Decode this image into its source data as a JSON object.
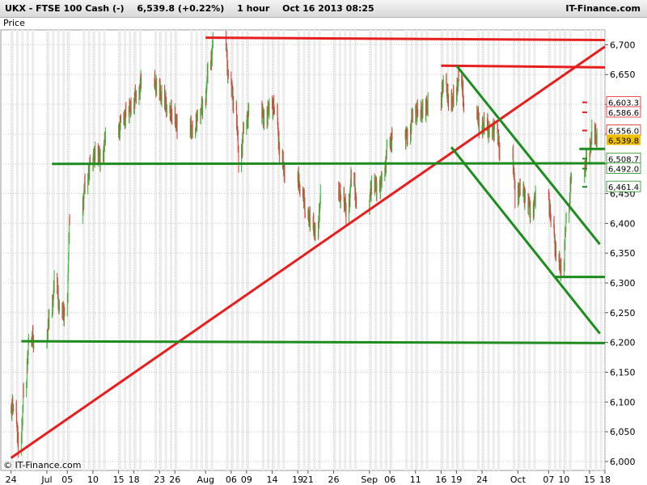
{
  "header": {
    "symbol": "UKX - FTSE 100 Cash (-)",
    "quote": "6,539.8 (+0.22%)",
    "interval": "1 hour",
    "datetime": "Oct 16 2013 08:25",
    "brand": "IT-Finance.com"
  },
  "footer": {
    "copyright": "© IT-Finance.com"
  },
  "colors": {
    "up": "#3cb43c",
    "down": "#dc3c3c",
    "support": "#1e8c1e",
    "resistance": "#e61e1e",
    "current": "#f0c000"
  },
  "chart_data": {
    "type": "candlestick",
    "title": "",
    "ylabel": "Price",
    "xlabel": "",
    "ylim": [
      5985,
      6725
    ],
    "yticks": [
      6000,
      6050,
      6100,
      6150,
      6200,
      6250,
      6300,
      6350,
      6400,
      6450,
      6500,
      6550,
      6600,
      6650,
      6700
    ],
    "ytick_labels": [
      "6,000",
      "6,050",
      "6,100",
      "6,150",
      "6,200",
      "6,250",
      "6,300",
      "6,350",
      "6,400",
      "6,450",
      "6,500",
      "6,550",
      "6,600",
      "6,650",
      "6,700"
    ],
    "xlim": [
      "2013-06-22",
      "2013-10-18"
    ],
    "xticks": [
      {
        "label": "24",
        "date": "2013-06-24"
      },
      {
        "label": "Jul",
        "date": "2013-07-01"
      },
      {
        "label": "05",
        "date": "2013-07-05"
      },
      {
        "label": "10",
        "date": "2013-07-10"
      },
      {
        "label": "15",
        "date": "2013-07-15"
      },
      {
        "label": "18",
        "date": "2013-07-18"
      },
      {
        "label": "23",
        "date": "2013-07-23"
      },
      {
        "label": "26",
        "date": "2013-07-26"
      },
      {
        "label": "Aug",
        "date": "2013-08-01"
      },
      {
        "label": "06",
        "date": "2013-08-06"
      },
      {
        "label": "09",
        "date": "2013-08-09"
      },
      {
        "label": "14",
        "date": "2013-08-14"
      },
      {
        "label": "19",
        "date": "2013-08-19"
      },
      {
        "label": "21",
        "date": "2013-08-21"
      },
      {
        "label": "26",
        "date": "2013-08-26"
      },
      {
        "label": "Sep",
        "date": "2013-09-02"
      },
      {
        "label": "06",
        "date": "2013-09-06"
      },
      {
        "label": "11",
        "date": "2013-09-11"
      },
      {
        "label": "16",
        "date": "2013-09-16"
      },
      {
        "label": "19",
        "date": "2013-09-19"
      },
      {
        "label": "24",
        "date": "2013-09-24"
      },
      {
        "label": "Oct",
        "date": "2013-10-01"
      },
      {
        "label": "07",
        "date": "2013-10-07"
      },
      {
        "label": "10",
        "date": "2013-10-10"
      },
      {
        "label": "15",
        "date": "2013-10-15"
      },
      {
        "label": "18",
        "date": "2013-10-18"
      }
    ],
    "grid": true,
    "price_series": [
      {
        "date": "2013-06-24",
        "close": 6090
      },
      {
        "date": "2013-06-25",
        "close": 6020
      },
      {
        "date": "2013-06-26",
        "close": 6120
      },
      {
        "date": "2013-06-27",
        "close": 6210
      },
      {
        "date": "2013-06-28",
        "close": 6200
      },
      {
        "date": "2013-07-01",
        "close": 6245
      },
      {
        "date": "2013-07-02",
        "close": 6300
      },
      {
        "date": "2013-07-03",
        "close": 6250
      },
      {
        "date": "2013-07-04",
        "close": 6250
      },
      {
        "date": "2013-07-05",
        "close": 6420
      },
      {
        "date": "2013-07-08",
        "close": 6470
      },
      {
        "date": "2013-07-09",
        "close": 6505
      },
      {
        "date": "2013-07-10",
        "close": 6520
      },
      {
        "date": "2013-07-11",
        "close": 6510
      },
      {
        "date": "2013-07-12",
        "close": 6550
      },
      {
        "date": "2013-07-15",
        "close": 6570
      },
      {
        "date": "2013-07-16",
        "close": 6585
      },
      {
        "date": "2013-07-17",
        "close": 6600
      },
      {
        "date": "2013-07-18",
        "close": 6620
      },
      {
        "date": "2013-07-19",
        "close": 6640
      },
      {
        "date": "2013-07-22",
        "close": 6625
      },
      {
        "date": "2013-07-23",
        "close": 6610
      },
      {
        "date": "2013-07-24",
        "close": 6590
      },
      {
        "date": "2013-07-25",
        "close": 6580
      },
      {
        "date": "2013-07-26",
        "close": 6560
      },
      {
        "date": "2013-07-29",
        "close": 6555
      },
      {
        "date": "2013-07-30",
        "close": 6585
      },
      {
        "date": "2013-07-31",
        "close": 6600
      },
      {
        "date": "2013-08-01",
        "close": 6660
      },
      {
        "date": "2013-08-02",
        "close": 6705
      },
      {
        "date": "2013-08-05",
        "close": 6640
      },
      {
        "date": "2013-08-06",
        "close": 6600
      },
      {
        "date": "2013-08-07",
        "close": 6510
      },
      {
        "date": "2013-08-08",
        "close": 6565
      },
      {
        "date": "2013-08-09",
        "close": 6590
      },
      {
        "date": "2013-08-12",
        "close": 6575
      },
      {
        "date": "2013-08-13",
        "close": 6600
      },
      {
        "date": "2013-08-14",
        "close": 6590
      },
      {
        "date": "2013-08-15",
        "close": 6510
      },
      {
        "date": "2013-08-16",
        "close": 6480
      },
      {
        "date": "2013-08-19",
        "close": 6460
      },
      {
        "date": "2013-08-20",
        "close": 6420
      },
      {
        "date": "2013-08-21",
        "close": 6400
      },
      {
        "date": "2013-08-22",
        "close": 6380
      },
      {
        "date": "2013-08-23",
        "close": 6450
      },
      {
        "date": "2013-08-27",
        "close": 6445
      },
      {
        "date": "2013-08-28",
        "close": 6420
      },
      {
        "date": "2013-08-29",
        "close": 6480
      },
      {
        "date": "2013-08-30",
        "close": 6430
      },
      {
        "date": "2013-09-02",
        "close": 6470
      },
      {
        "date": "2013-09-03",
        "close": 6460
      },
      {
        "date": "2013-09-04",
        "close": 6475
      },
      {
        "date": "2013-09-05",
        "close": 6530
      },
      {
        "date": "2013-09-06",
        "close": 6545
      },
      {
        "date": "2013-09-09",
        "close": 6550
      },
      {
        "date": "2013-09-10",
        "close": 6590
      },
      {
        "date": "2013-09-11",
        "close": 6585
      },
      {
        "date": "2013-09-12",
        "close": 6590
      },
      {
        "date": "2013-09-13",
        "close": 6600
      },
      {
        "date": "2013-09-16",
        "close": 6640
      },
      {
        "date": "2013-09-17",
        "close": 6600
      },
      {
        "date": "2013-09-18",
        "close": 6610
      },
      {
        "date": "2013-09-19",
        "close": 6650
      },
      {
        "date": "2013-09-20",
        "close": 6595
      },
      {
        "date": "2013-09-23",
        "close": 6560
      },
      {
        "date": "2013-09-24",
        "close": 6565
      },
      {
        "date": "2013-09-25",
        "close": 6550
      },
      {
        "date": "2013-09-26",
        "close": 6560
      },
      {
        "date": "2013-09-27",
        "close": 6520
      },
      {
        "date": "2013-09-30",
        "close": 6450
      },
      {
        "date": "2013-10-01",
        "close": 6460
      },
      {
        "date": "2013-10-02",
        "close": 6440
      },
      {
        "date": "2013-10-03",
        "close": 6420
      },
      {
        "date": "2013-10-04",
        "close": 6450
      },
      {
        "date": "2013-10-07",
        "close": 6400
      },
      {
        "date": "2013-10-08",
        "close": 6340
      },
      {
        "date": "2013-10-09",
        "close": 6320
      },
      {
        "date": "2013-10-10",
        "close": 6420
      },
      {
        "date": "2013-10-11",
        "close": 6485
      },
      {
        "date": "2013-10-14",
        "close": 6510
      },
      {
        "date": "2013-10-15",
        "close": 6550
      },
      {
        "date": "2013-10-16",
        "close": 6540
      }
    ],
    "trendlines": [
      {
        "kind": "resistance",
        "start": {
          "date": "2013-08-01",
          "value": 6712
        },
        "end": {
          "date": "2013-10-18",
          "value": 6708
        }
      },
      {
        "kind": "resistance",
        "start": {
          "date": "2013-09-16",
          "value": 6665
        },
        "end": {
          "date": "2013-10-18",
          "value": 6662
        }
      },
      {
        "kind": "resistance",
        "start": {
          "date": "2013-06-24",
          "value": 6006
        },
        "end": {
          "date": "2013-10-18",
          "value": 6697
        }
      },
      {
        "kind": "support",
        "start": {
          "date": "2013-07-02",
          "value": 6500
        },
        "end": {
          "date": "2013-10-18",
          "value": 6501
        }
      },
      {
        "kind": "support",
        "start": {
          "date": "2013-06-26",
          "value": 6202
        },
        "end": {
          "date": "2013-10-18",
          "value": 6199
        }
      },
      {
        "kind": "support",
        "start": {
          "date": "2013-10-08",
          "value": 6310
        },
        "end": {
          "date": "2013-10-18",
          "value": 6310
        }
      },
      {
        "kind": "support",
        "start": {
          "date": "2013-10-13",
          "value": 6525
        },
        "end": {
          "date": "2013-10-18",
          "value": 6525
        }
      },
      {
        "kind": "support",
        "start": {
          "date": "2013-09-19",
          "value": 6665
        },
        "end": {
          "date": "2013-10-17",
          "value": 6365
        }
      },
      {
        "kind": "support",
        "start": {
          "date": "2013-09-18",
          "value": 6528
        },
        "end": {
          "date": "2013-10-17",
          "value": 6215
        }
      }
    ],
    "price_labels": [
      {
        "text": "6,603.3",
        "value": 6603.3,
        "kind": "resistance"
      },
      {
        "text": "6,586.6",
        "value": 6586.6,
        "kind": "resistance"
      },
      {
        "text": "6,556.0",
        "value": 6556.0,
        "kind": "resistance"
      },
      {
        "text": "6,539.8",
        "value": 6539.8,
        "kind": "current"
      },
      {
        "text": "6,508.7",
        "value": 6508.7,
        "kind": "support"
      },
      {
        "text": "6,492.0",
        "value": 6492.0,
        "kind": "support"
      },
      {
        "text": "6,461.4",
        "value": 6461.4,
        "kind": "support"
      }
    ]
  }
}
